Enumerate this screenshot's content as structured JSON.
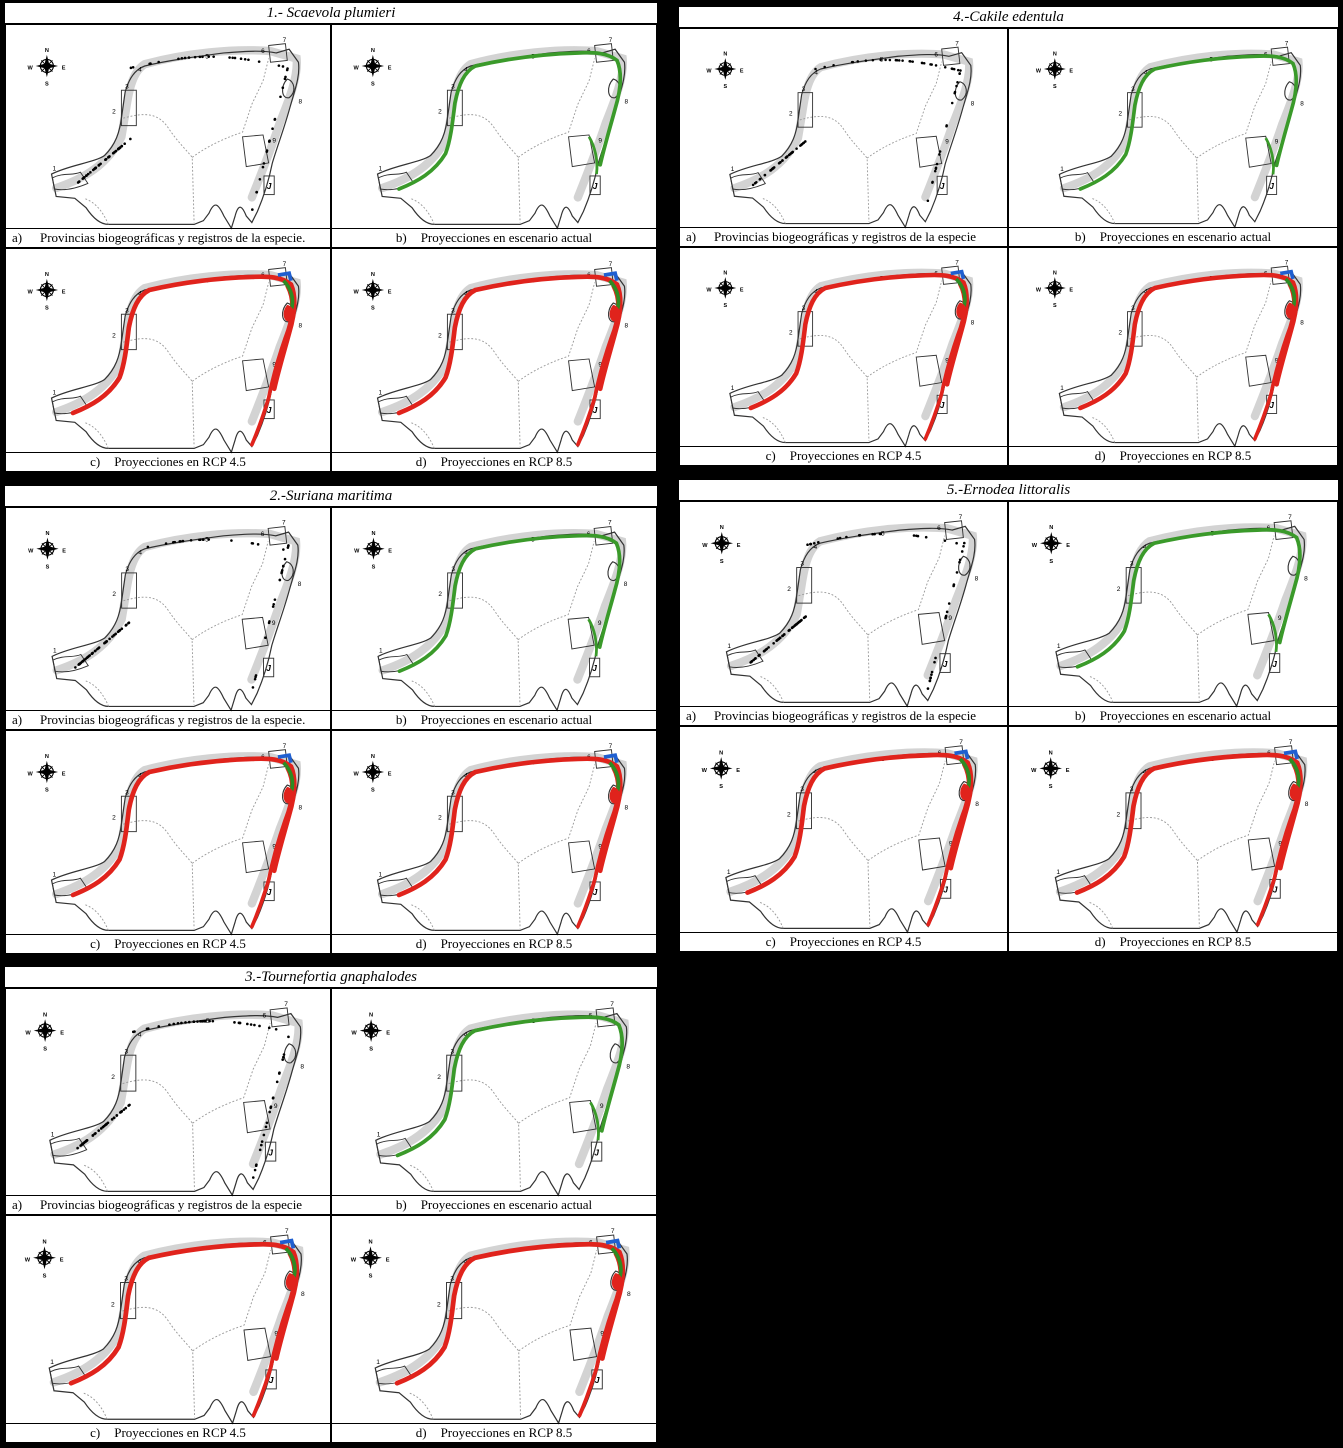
{
  "figure": {
    "blocks": [
      {
        "title": "1.- Scaevola plumieri",
        "panels": [
          {
            "letter": "a)",
            "text": "Provincias biogeográficas y registros de la especie.",
            "layer": "records"
          },
          {
            "letter": "b)",
            "text": "Proyecciones en escenario actual",
            "layer": "current"
          },
          {
            "letter": "c)",
            "text": "Proyecciones en RCP 4.5",
            "layer": "rcp"
          },
          {
            "letter": "d)",
            "text": "Proyecciones en RCP 8.5",
            "layer": "rcp"
          }
        ]
      },
      {
        "title": "2.-Suriana maritima",
        "panels": [
          {
            "letter": "a)",
            "text": "Provincias biogeográficas y registros de la especie.",
            "layer": "records"
          },
          {
            "letter": "b)",
            "text": "Proyecciones en escenario actual",
            "layer": "current"
          },
          {
            "letter": "c)",
            "text": "Proyecciones en RCP 4.5",
            "layer": "rcp"
          },
          {
            "letter": "d)",
            "text": "Proyecciones en RCP 8.5",
            "layer": "rcp"
          }
        ]
      },
      {
        "title": "3.-Tournefortia gnaphalodes",
        "panels": [
          {
            "letter": "a)",
            "text": "Provincias biogeográficas y registros de la especie",
            "layer": "records"
          },
          {
            "letter": "b)",
            "text": "Proyecciones en escenario actual",
            "layer": "current"
          },
          {
            "letter": "c)",
            "text": "Proyecciones en RCP 4.5",
            "layer": "rcp"
          },
          {
            "letter": "d)",
            "text": "Proyecciones en RCP 8.5",
            "layer": "rcp"
          }
        ]
      },
      {
        "title": "4.-Cakile edentula",
        "panels": [
          {
            "letter": "a)",
            "text": "Provincias biogeográficas y registros de la especie",
            "layer": "records"
          },
          {
            "letter": "b)",
            "text": "Proyecciones en escenario actual",
            "layer": "current"
          },
          {
            "letter": "c)",
            "text": "Proyecciones en RCP 4.5",
            "layer": "rcp"
          },
          {
            "letter": "d)",
            "text": "Proyecciones en RCP 8.5",
            "layer": "rcp"
          }
        ]
      },
      {
        "title": "5.-Ernodea littoralis",
        "panels": [
          {
            "letter": "a)",
            "text": "Provincias biogeográficas y registros de la especie",
            "layer": "records"
          },
          {
            "letter": "b)",
            "text": "Proyecciones en escenario actual",
            "layer": "current"
          },
          {
            "letter": "c)",
            "text": "Proyecciones en RCP 4.5",
            "layer": "rcp"
          },
          {
            "letter": "d)",
            "text": "Proyecciones en RCP 8.5",
            "layer": "rcp"
          }
        ]
      }
    ],
    "map_labels": {
      "compass": {
        "n": "N",
        "s": "S",
        "e": "E",
        "w": "W"
      },
      "provinces": [
        "1",
        "2",
        "3",
        "4",
        "5",
        "6",
        "7",
        "8",
        "9"
      ],
      "inset": "J"
    },
    "colors": {
      "background": "#000000",
      "panel": "#ffffff",
      "records": "#000000",
      "current_projection": "#3a9a2a",
      "rcp_projection": "#e0231c",
      "rcp_stable": "#2e8b22",
      "rcp_gain": "#1f5fd0",
      "province_outline": "#333333",
      "state_boundary": "#9a9a9a",
      "coastal_shade": "#c8c8c8"
    }
  }
}
